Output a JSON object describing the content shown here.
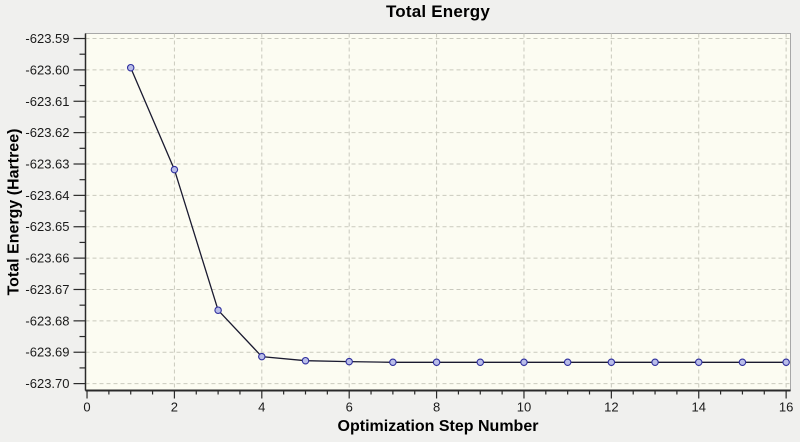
{
  "window": {
    "title": "Total Energy"
  },
  "chart_data": {
    "type": "line",
    "title": "Total Energy",
    "xlabel": "Optimization Step Number",
    "ylabel": "Total Energy (Hartree)",
    "x": [
      1,
      2,
      3,
      4,
      5,
      6,
      7,
      8,
      9,
      10,
      11,
      12,
      13,
      14,
      15,
      16
    ],
    "y": [
      -623.5993,
      -623.6318,
      -623.6766,
      -623.6914,
      -623.6927,
      -623.693,
      -623.6932,
      -623.6932,
      -623.6932,
      -623.6932,
      -623.6932,
      -623.6932,
      -623.6932,
      -623.6932,
      -623.6932,
      -623.6932
    ],
    "x_ticks": [
      0,
      2,
      4,
      6,
      8,
      10,
      12,
      14,
      16
    ],
    "x_minor_step": 0.5,
    "y_ticks": [
      -623.59,
      -623.6,
      -623.61,
      -623.62,
      -623.63,
      -623.64,
      -623.65,
      -623.66,
      -623.67,
      -623.68,
      -623.69,
      -623.7
    ],
    "y_minor_step": 0.005,
    "xlim": [
      -0.035,
      16.1
    ],
    "ylim": [
      -623.7022,
      -623.5884
    ],
    "y_tick_decimals": 2,
    "grid": "dashed-major-only",
    "legend": "none",
    "marker": "open-circle",
    "colors": {
      "background": "#f0f0ee",
      "plot_background": "#fcfcf2",
      "grid": "#c9c9bd",
      "axis": "#2a2a2a",
      "box": "#a8a8a8",
      "line": "#1a1a30",
      "marker_fill": "#b9bde9",
      "marker_stroke": "#2f2f9e",
      "tick_text": "#1a1a1a"
    }
  }
}
